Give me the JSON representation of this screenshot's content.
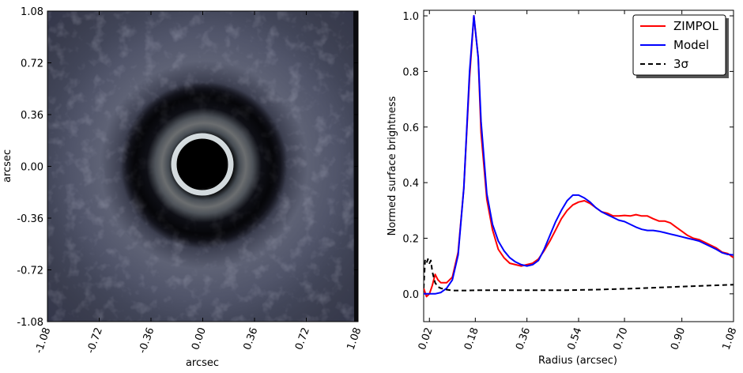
{
  "chart_data": [
    {
      "type": "heatmap",
      "title": "",
      "xlabel": "arcsec",
      "ylabel": "arcsec",
      "xlim": [
        -1.08,
        1.08
      ],
      "ylim": [
        -1.08,
        1.08
      ],
      "xticks": [
        "-1.08",
        "-0.72",
        "-0.36",
        "0.00",
        "0.36",
        "0.72",
        "1.08"
      ],
      "yticks": [
        "1.08",
        "0.72",
        "0.36",
        "0.00",
        "-0.36",
        "-0.72",
        "-1.08"
      ],
      "colormap": "bone",
      "features": {
        "bright_ring_radius": 0.18,
        "dark_gap_outer_radius": 0.54,
        "outer_halo": "diffuse mottled emission"
      }
    },
    {
      "type": "line",
      "title": "",
      "xlabel": "Radius (arcsec)",
      "ylabel": "Normed surface brightness",
      "xlim": [
        0.0,
        1.08
      ],
      "ylim": [
        -0.1,
        1.02
      ],
      "xticks": [
        "0.02",
        "0.18",
        "0.36",
        "0.54",
        "0.70",
        "0.90",
        "1.08"
      ],
      "yticks": [
        "0.0",
        "0.2",
        "0.4",
        "0.6",
        "0.8",
        "1.0"
      ],
      "legend_position": "top-right",
      "series": [
        {
          "name": "ZIMPOL",
          "color": "#ff0000",
          "dash": "solid",
          "points": [
            [
              0.0,
              0.02
            ],
            [
              0.01,
              -0.01
            ],
            [
              0.02,
              0.0
            ],
            [
              0.03,
              0.03
            ],
            [
              0.04,
              0.07
            ],
            [
              0.05,
              0.05
            ],
            [
              0.06,
              0.04
            ],
            [
              0.08,
              0.04
            ],
            [
              0.1,
              0.06
            ],
            [
              0.12,
              0.15
            ],
            [
              0.14,
              0.38
            ],
            [
              0.16,
              0.78
            ],
            [
              0.175,
              1.0
            ],
            [
              0.19,
              0.85
            ],
            [
              0.2,
              0.58
            ],
            [
              0.22,
              0.34
            ],
            [
              0.24,
              0.23
            ],
            [
              0.26,
              0.16
            ],
            [
              0.28,
              0.13
            ],
            [
              0.3,
              0.11
            ],
            [
              0.32,
              0.105
            ],
            [
              0.34,
              0.1
            ],
            [
              0.36,
              0.105
            ],
            [
              0.38,
              0.11
            ],
            [
              0.4,
              0.125
            ],
            [
              0.42,
              0.155
            ],
            [
              0.44,
              0.19
            ],
            [
              0.46,
              0.23
            ],
            [
              0.48,
              0.27
            ],
            [
              0.5,
              0.3
            ],
            [
              0.52,
              0.32
            ],
            [
              0.54,
              0.33
            ],
            [
              0.56,
              0.335
            ],
            [
              0.58,
              0.325
            ],
            [
              0.6,
              0.31
            ],
            [
              0.62,
              0.295
            ],
            [
              0.64,
              0.29
            ],
            [
              0.66,
              0.28
            ],
            [
              0.68,
              0.28
            ],
            [
              0.7,
              0.282
            ],
            [
              0.72,
              0.28
            ],
            [
              0.74,
              0.285
            ],
            [
              0.76,
              0.28
            ],
            [
              0.78,
              0.28
            ],
            [
              0.8,
              0.27
            ],
            [
              0.82,
              0.262
            ],
            [
              0.84,
              0.262
            ],
            [
              0.86,
              0.255
            ],
            [
              0.88,
              0.24
            ],
            [
              0.9,
              0.225
            ],
            [
              0.92,
              0.21
            ],
            [
              0.94,
              0.2
            ],
            [
              0.96,
              0.195
            ],
            [
              0.98,
              0.185
            ],
            [
              1.0,
              0.175
            ],
            [
              1.02,
              0.165
            ],
            [
              1.04,
              0.15
            ],
            [
              1.06,
              0.145
            ],
            [
              1.08,
              0.13
            ]
          ]
        },
        {
          "name": "Model",
          "color": "#0000ff",
          "dash": "solid",
          "points": [
            [
              0.0,
              0.0
            ],
            [
              0.02,
              0.0
            ],
            [
              0.04,
              0.0
            ],
            [
              0.06,
              0.005
            ],
            [
              0.08,
              0.02
            ],
            [
              0.1,
              0.05
            ],
            [
              0.12,
              0.14
            ],
            [
              0.14,
              0.38
            ],
            [
              0.16,
              0.8
            ],
            [
              0.175,
              1.0
            ],
            [
              0.19,
              0.85
            ],
            [
              0.2,
              0.62
            ],
            [
              0.22,
              0.36
            ],
            [
              0.24,
              0.25
            ],
            [
              0.26,
              0.19
            ],
            [
              0.28,
              0.155
            ],
            [
              0.3,
              0.13
            ],
            [
              0.32,
              0.115
            ],
            [
              0.34,
              0.105
            ],
            [
              0.36,
              0.1
            ],
            [
              0.38,
              0.105
            ],
            [
              0.4,
              0.12
            ],
            [
              0.42,
              0.16
            ],
            [
              0.44,
              0.21
            ],
            [
              0.46,
              0.26
            ],
            [
              0.48,
              0.3
            ],
            [
              0.5,
              0.335
            ],
            [
              0.52,
              0.355
            ],
            [
              0.54,
              0.355
            ],
            [
              0.56,
              0.345
            ],
            [
              0.58,
              0.33
            ],
            [
              0.6,
              0.31
            ],
            [
              0.62,
              0.295
            ],
            [
              0.64,
              0.285
            ],
            [
              0.66,
              0.275
            ],
            [
              0.68,
              0.265
            ],
            [
              0.7,
              0.26
            ],
            [
              0.72,
              0.25
            ],
            [
              0.74,
              0.24
            ],
            [
              0.76,
              0.232
            ],
            [
              0.78,
              0.228
            ],
            [
              0.8,
              0.228
            ],
            [
              0.82,
              0.225
            ],
            [
              0.84,
              0.22
            ],
            [
              0.86,
              0.215
            ],
            [
              0.88,
              0.21
            ],
            [
              0.9,
              0.205
            ],
            [
              0.92,
              0.2
            ],
            [
              0.94,
              0.195
            ],
            [
              0.96,
              0.19
            ],
            [
              0.98,
              0.18
            ],
            [
              1.0,
              0.17
            ],
            [
              1.02,
              0.16
            ],
            [
              1.04,
              0.148
            ],
            [
              1.06,
              0.142
            ],
            [
              1.08,
              0.14
            ]
          ]
        },
        {
          "name": "3σ",
          "color": "#000000",
          "dash": "dashed",
          "points": [
            [
              0.0,
              0.02
            ],
            [
              0.005,
              0.12
            ],
            [
              0.01,
              0.11
            ],
            [
              0.015,
              0.125
            ],
            [
              0.02,
              0.11
            ],
            [
              0.025,
              0.12
            ],
            [
              0.03,
              0.08
            ],
            [
              0.035,
              0.06
            ],
            [
              0.04,
              0.04
            ],
            [
              0.05,
              0.025
            ],
            [
              0.06,
              0.02
            ],
            [
              0.08,
              0.015
            ],
            [
              0.1,
              0.012
            ],
            [
              0.15,
              0.012
            ],
            [
              0.2,
              0.013
            ],
            [
              0.3,
              0.013
            ],
            [
              0.4,
              0.013
            ],
            [
              0.5,
              0.013
            ],
            [
              0.6,
              0.015
            ],
            [
              0.7,
              0.018
            ],
            [
              0.8,
              0.022
            ],
            [
              0.9,
              0.026
            ],
            [
              1.0,
              0.03
            ],
            [
              1.08,
              0.033
            ]
          ]
        }
      ]
    }
  ]
}
